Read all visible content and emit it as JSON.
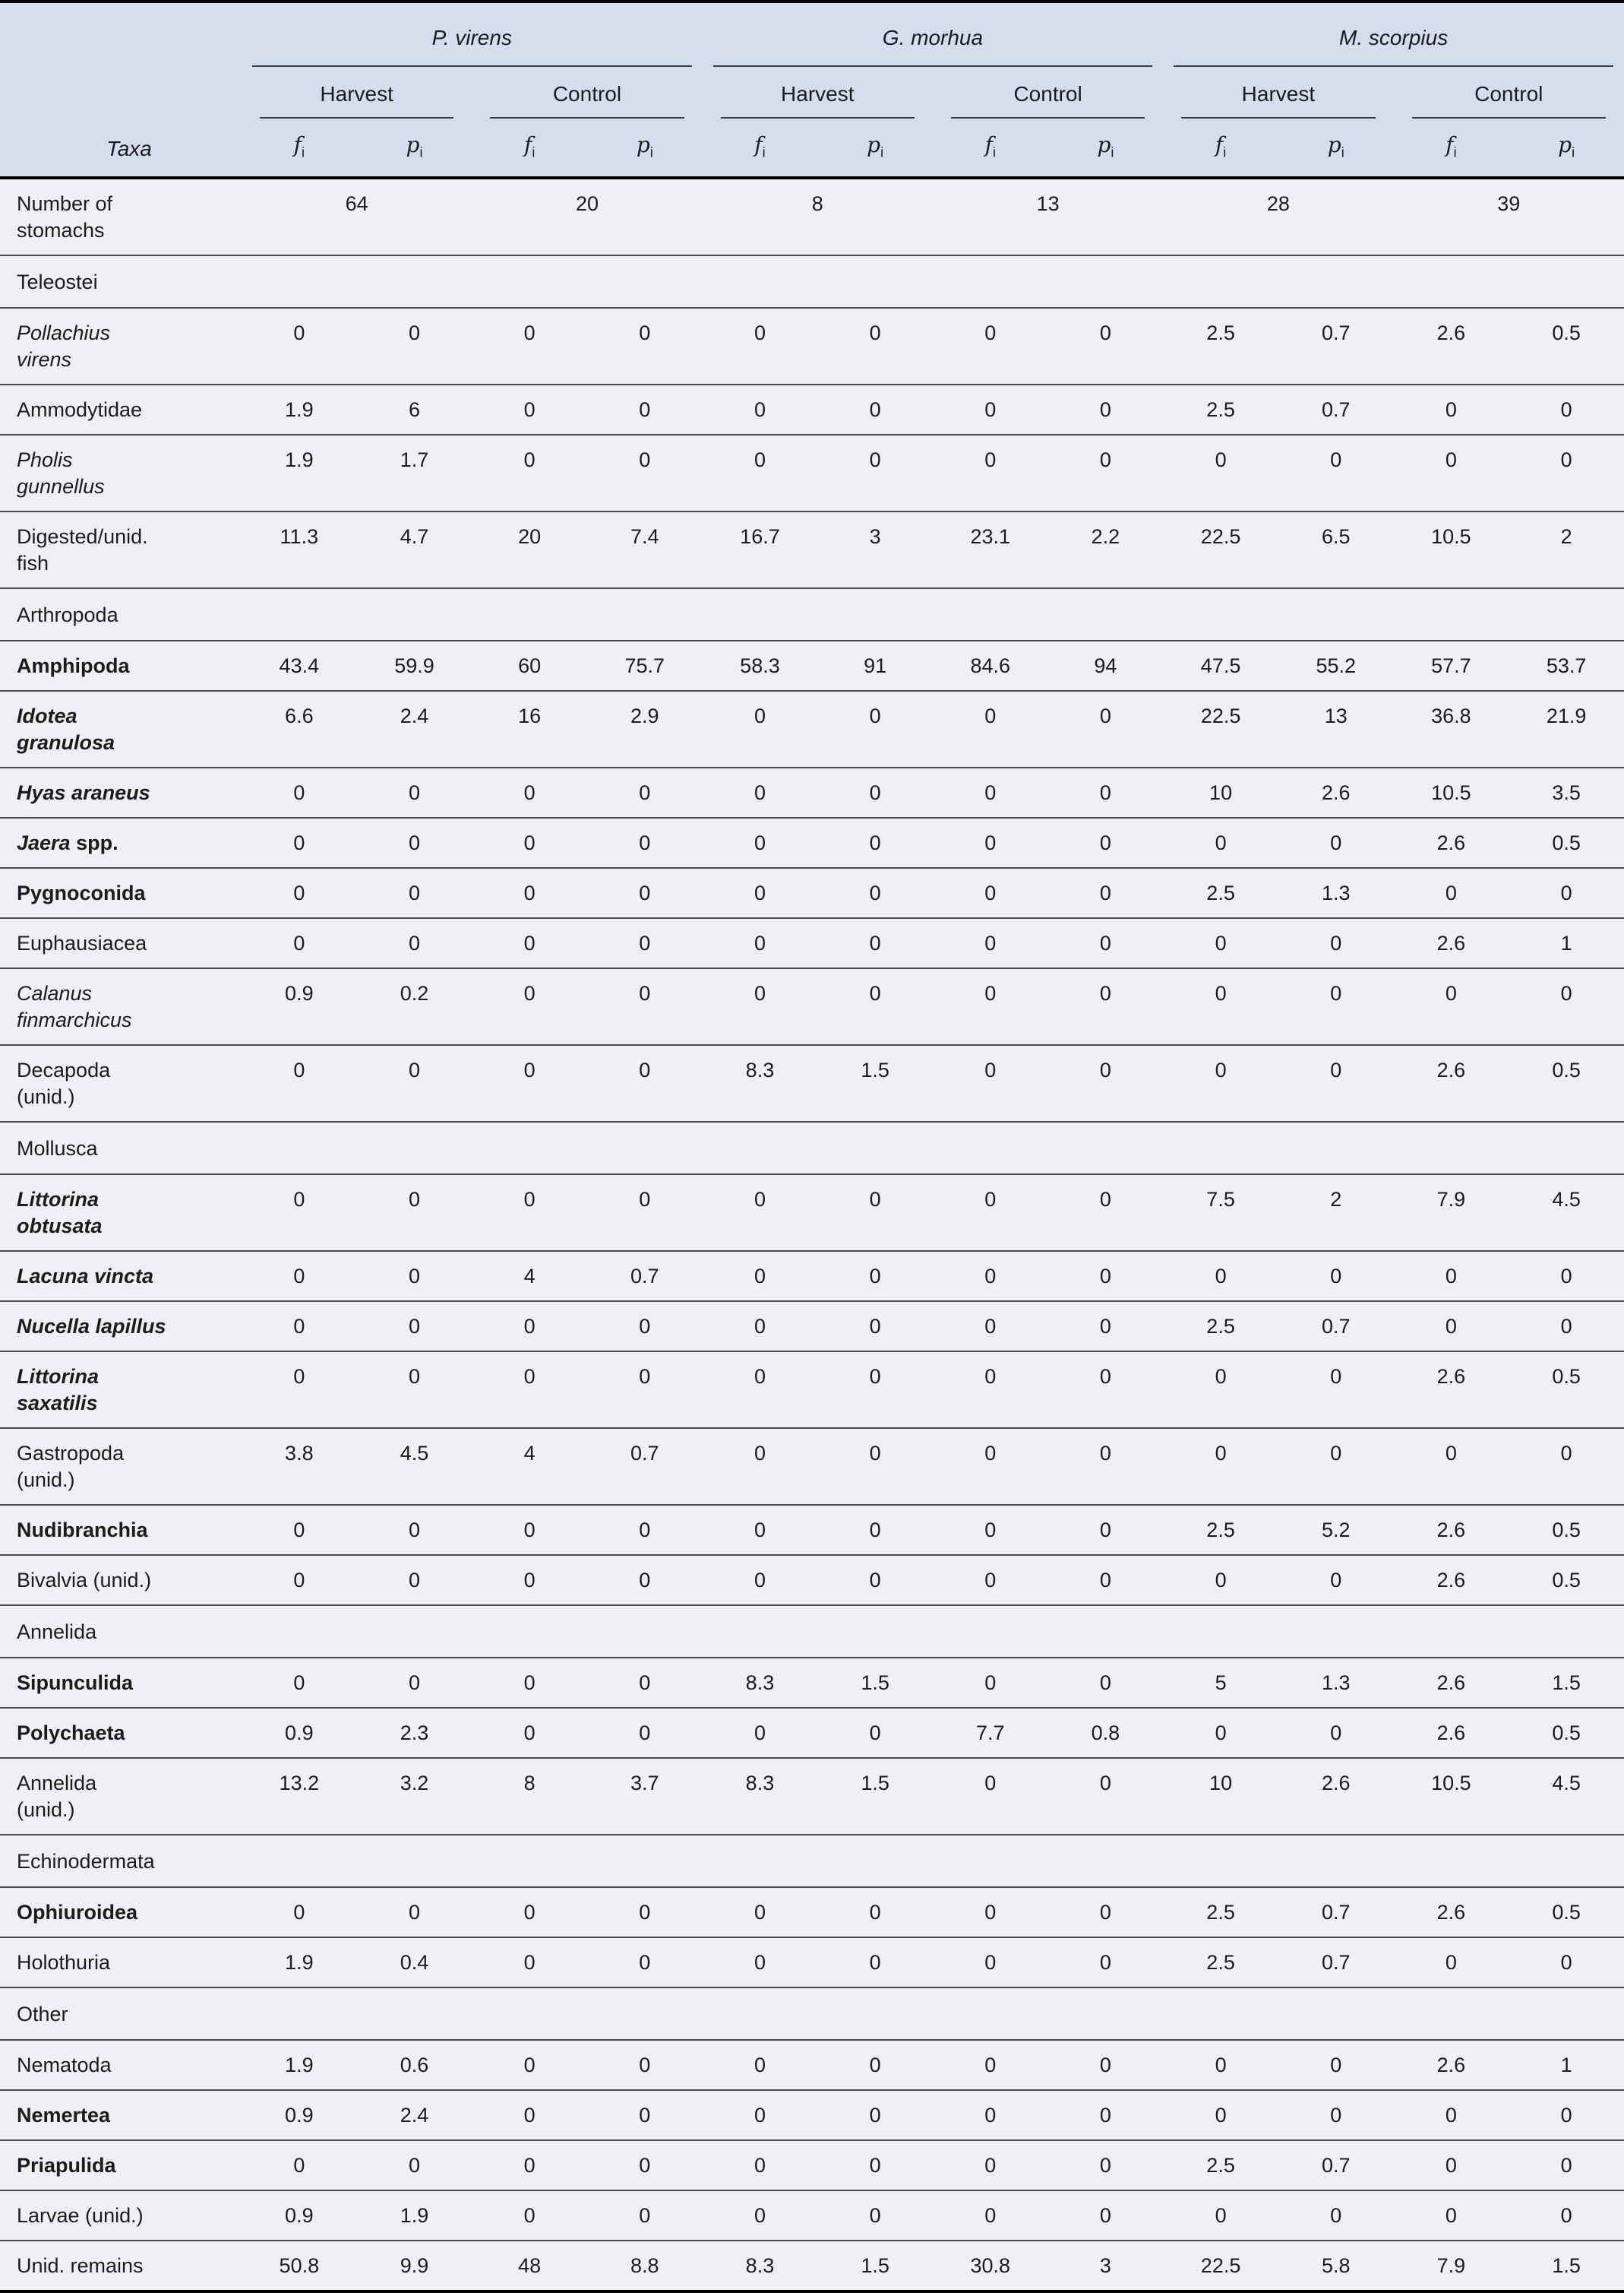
{
  "colors": {
    "header_bg": "#d5deed",
    "body_bg": "#eef0f4",
    "text": "#1c1c1c",
    "rule": "#3f3f3f",
    "frame": "#000000"
  },
  "table": {
    "taxa_header": "Taxa",
    "stat_f": "f",
    "stat_p": "p",
    "stat_sub": "i",
    "groups": [
      {
        "species": "P. virens",
        "conditions": [
          "Harvest",
          "Control"
        ]
      },
      {
        "species": "G. morhua",
        "conditions": [
          "Harvest",
          "Control"
        ]
      },
      {
        "species": "M. scorpius",
        "conditions": [
          "Harvest",
          "Control"
        ]
      }
    ],
    "stomachs_row": {
      "label": "Number of\nstomachs",
      "counts": [
        64,
        20,
        8,
        13,
        28,
        39
      ]
    },
    "rows": [
      {
        "label": "Teleostei",
        "style": "section"
      },
      {
        "label": "Pollachius\nvirens",
        "style": "italic",
        "values": [
          "0",
          "0",
          "0",
          "0",
          "0",
          "0",
          "0",
          "0",
          "2.5",
          "0.7",
          "2.6",
          "0.5"
        ]
      },
      {
        "label": "Ammodytidae",
        "style": "plain",
        "values": [
          "1.9",
          "6",
          "0",
          "0",
          "0",
          "0",
          "0",
          "0",
          "2.5",
          "0.7",
          "0",
          "0"
        ]
      },
      {
        "label": "Pholis\ngunnellus",
        "style": "italic",
        "values": [
          "1.9",
          "1.7",
          "0",
          "0",
          "0",
          "0",
          "0",
          "0",
          "0",
          "0",
          "0",
          "0"
        ]
      },
      {
        "label": "Digested/unid.\nfish",
        "style": "plain",
        "values": [
          "11.3",
          "4.7",
          "20",
          "7.4",
          "16.7",
          "3",
          "23.1",
          "2.2",
          "22.5",
          "6.5",
          "10.5",
          "2"
        ]
      },
      {
        "label": "Arthropoda",
        "style": "section"
      },
      {
        "label": "Amphipoda",
        "style": "bold",
        "values": [
          "43.4",
          "59.9",
          "60",
          "75.7",
          "58.3",
          "91",
          "84.6",
          "94",
          "47.5",
          "55.2",
          "57.7",
          "53.7"
        ]
      },
      {
        "label": "Idotea\ngranulosa",
        "style": "bolditalic",
        "values": [
          "6.6",
          "2.4",
          "16",
          "2.9",
          "0",
          "0",
          "0",
          "0",
          "22.5",
          "13",
          "36.8",
          "21.9"
        ]
      },
      {
        "label": "Hyas araneus",
        "style": "bolditalic",
        "values": [
          "0",
          "0",
          "0",
          "0",
          "0",
          "0",
          "0",
          "0",
          "10",
          "2.6",
          "10.5",
          "3.5"
        ]
      },
      {
        "label": "Jaera",
        "suffix": " spp.",
        "style": "bolditalic",
        "values": [
          "0",
          "0",
          "0",
          "0",
          "0",
          "0",
          "0",
          "0",
          "0",
          "0",
          "2.6",
          "0.5"
        ]
      },
      {
        "label": "Pygnoconida",
        "style": "bold",
        "values": [
          "0",
          "0",
          "0",
          "0",
          "0",
          "0",
          "0",
          "0",
          "2.5",
          "1.3",
          "0",
          "0"
        ]
      },
      {
        "label": "Euphausiacea",
        "style": "plain",
        "values": [
          "0",
          "0",
          "0",
          "0",
          "0",
          "0",
          "0",
          "0",
          "0",
          "0",
          "2.6",
          "1"
        ]
      },
      {
        "label": "Calanus\nfinmarchicus",
        "style": "italic",
        "values": [
          "0.9",
          "0.2",
          "0",
          "0",
          "0",
          "0",
          "0",
          "0",
          "0",
          "0",
          "0",
          "0"
        ]
      },
      {
        "label": "Decapoda\n(unid.)",
        "style": "plain",
        "values": [
          "0",
          "0",
          "0",
          "0",
          "8.3",
          "1.5",
          "0",
          "0",
          "0",
          "0",
          "2.6",
          "0.5"
        ]
      },
      {
        "label": "Mollusca",
        "style": "section"
      },
      {
        "label": "Littorina\nobtusata",
        "style": "bolditalic",
        "values": [
          "0",
          "0",
          "0",
          "0",
          "0",
          "0",
          "0",
          "0",
          "7.5",
          "2",
          "7.9",
          "4.5"
        ]
      },
      {
        "label": "Lacuna vincta",
        "style": "bolditalic",
        "values": [
          "0",
          "0",
          "4",
          "0.7",
          "0",
          "0",
          "0",
          "0",
          "0",
          "0",
          "0",
          "0"
        ]
      },
      {
        "label": "Nucella lapillus",
        "style": "bolditalic",
        "values": [
          "0",
          "0",
          "0",
          "0",
          "0",
          "0",
          "0",
          "0",
          "2.5",
          "0.7",
          "0",
          "0"
        ]
      },
      {
        "label": "Littorina\nsaxatilis",
        "style": "bolditalic",
        "values": [
          "0",
          "0",
          "0",
          "0",
          "0",
          "0",
          "0",
          "0",
          "0",
          "0",
          "2.6",
          "0.5"
        ]
      },
      {
        "label": "Gastropoda\n(unid.)",
        "style": "plain",
        "values": [
          "3.8",
          "4.5",
          "4",
          "0.7",
          "0",
          "0",
          "0",
          "0",
          "0",
          "0",
          "0",
          "0"
        ]
      },
      {
        "label": "Nudibranchia",
        "style": "bold",
        "values": [
          "0",
          "0",
          "0",
          "0",
          "0",
          "0",
          "0",
          "0",
          "2.5",
          "5.2",
          "2.6",
          "0.5"
        ]
      },
      {
        "label": "Bivalvia (unid.)",
        "style": "plain",
        "values": [
          "0",
          "0",
          "0",
          "0",
          "0",
          "0",
          "0",
          "0",
          "0",
          "0",
          "2.6",
          "0.5"
        ]
      },
      {
        "label": "Annelida",
        "style": "section"
      },
      {
        "label": "Sipunculida",
        "style": "bold",
        "values": [
          "0",
          "0",
          "0",
          "0",
          "8.3",
          "1.5",
          "0",
          "0",
          "5",
          "1.3",
          "2.6",
          "1.5"
        ]
      },
      {
        "label": "Polychaeta",
        "style": "bold",
        "values": [
          "0.9",
          "2.3",
          "0",
          "0",
          "0",
          "0",
          "7.7",
          "0.8",
          "0",
          "0",
          "2.6",
          "0.5"
        ]
      },
      {
        "label": "Annelida\n(unid.)",
        "style": "plain",
        "values": [
          "13.2",
          "3.2",
          "8",
          "3.7",
          "8.3",
          "1.5",
          "0",
          "0",
          "10",
          "2.6",
          "10.5",
          "4.5"
        ]
      },
      {
        "label": "Echinodermata",
        "style": "section"
      },
      {
        "label": "Ophiuroidea",
        "style": "bold",
        "values": [
          "0",
          "0",
          "0",
          "0",
          "0",
          "0",
          "0",
          "0",
          "2.5",
          "0.7",
          "2.6",
          "0.5"
        ]
      },
      {
        "label": "Holothuria",
        "style": "plain",
        "values": [
          "1.9",
          "0.4",
          "0",
          "0",
          "0",
          "0",
          "0",
          "0",
          "2.5",
          "0.7",
          "0",
          "0"
        ]
      },
      {
        "label": "Other",
        "style": "section"
      },
      {
        "label": "Nematoda",
        "style": "plain",
        "values": [
          "1.9",
          "0.6",
          "0",
          "0",
          "0",
          "0",
          "0",
          "0",
          "0",
          "0",
          "2.6",
          "1"
        ]
      },
      {
        "label": "Nemertea",
        "style": "bold",
        "values": [
          "0.9",
          "2.4",
          "0",
          "0",
          "0",
          "0",
          "0",
          "0",
          "0",
          "0",
          "0",
          "0"
        ]
      },
      {
        "label": "Priapulida",
        "style": "bold",
        "values": [
          "0",
          "0",
          "0",
          "0",
          "0",
          "0",
          "0",
          "0",
          "2.5",
          "0.7",
          "0",
          "0"
        ]
      },
      {
        "label": "Larvae (unid.)",
        "style": "plain",
        "values": [
          "0.9",
          "1.9",
          "0",
          "0",
          "0",
          "0",
          "0",
          "0",
          "0",
          "0",
          "0",
          "0"
        ]
      },
      {
        "label": "Unid. remains",
        "style": "plain",
        "values": [
          "50.8",
          "9.9",
          "48",
          "8.8",
          "8.3",
          "1.5",
          "30.8",
          "3",
          "22.5",
          "5.8",
          "7.9",
          "1.5"
        ]
      }
    ]
  }
}
